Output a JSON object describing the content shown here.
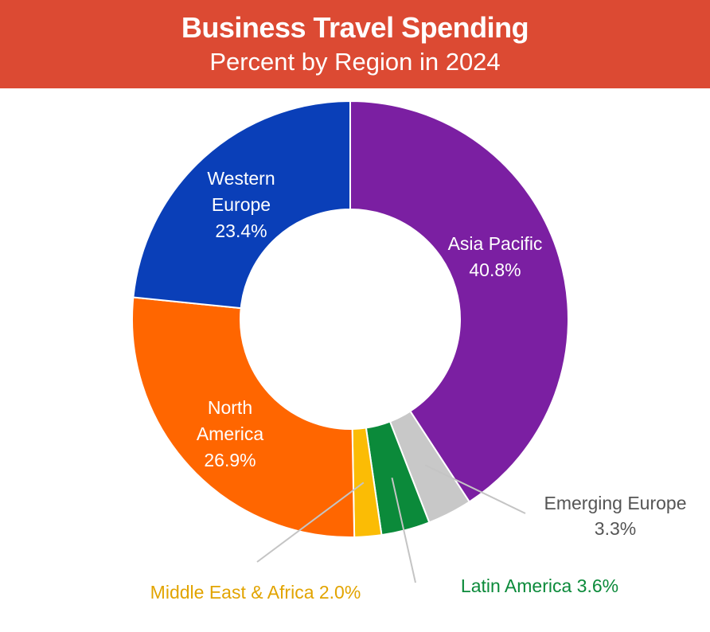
{
  "header": {
    "title": "Business Travel Spending",
    "subtitle": "Percent by Region in 2024"
  },
  "chart_data": {
    "type": "pie",
    "donut": true,
    "title": "Business Travel Spending",
    "subtitle": "Percent by Region in 2024",
    "categories": [
      "Asia Pacific",
      "Emerging Europe",
      "Latin America",
      "Middle East & Africa",
      "North America",
      "Western Europe"
    ],
    "values": [
      40.8,
      3.3,
      3.6,
      2.0,
      26.9,
      23.4
    ],
    "value_labels": [
      "40.8%",
      "3.3%",
      "3.6%",
      "2.0%",
      "26.9%",
      "23.4%"
    ],
    "colors": [
      "#7b1fa2",
      "#c8c8c8",
      "#0b8a3a",
      "#fbbc05",
      "#ff6600",
      "#0a3fb8"
    ],
    "label_colors": [
      "#ffffff",
      "#555555",
      "#0b8a3a",
      "#e2a400",
      "#ffffff",
      "#ffffff"
    ]
  }
}
